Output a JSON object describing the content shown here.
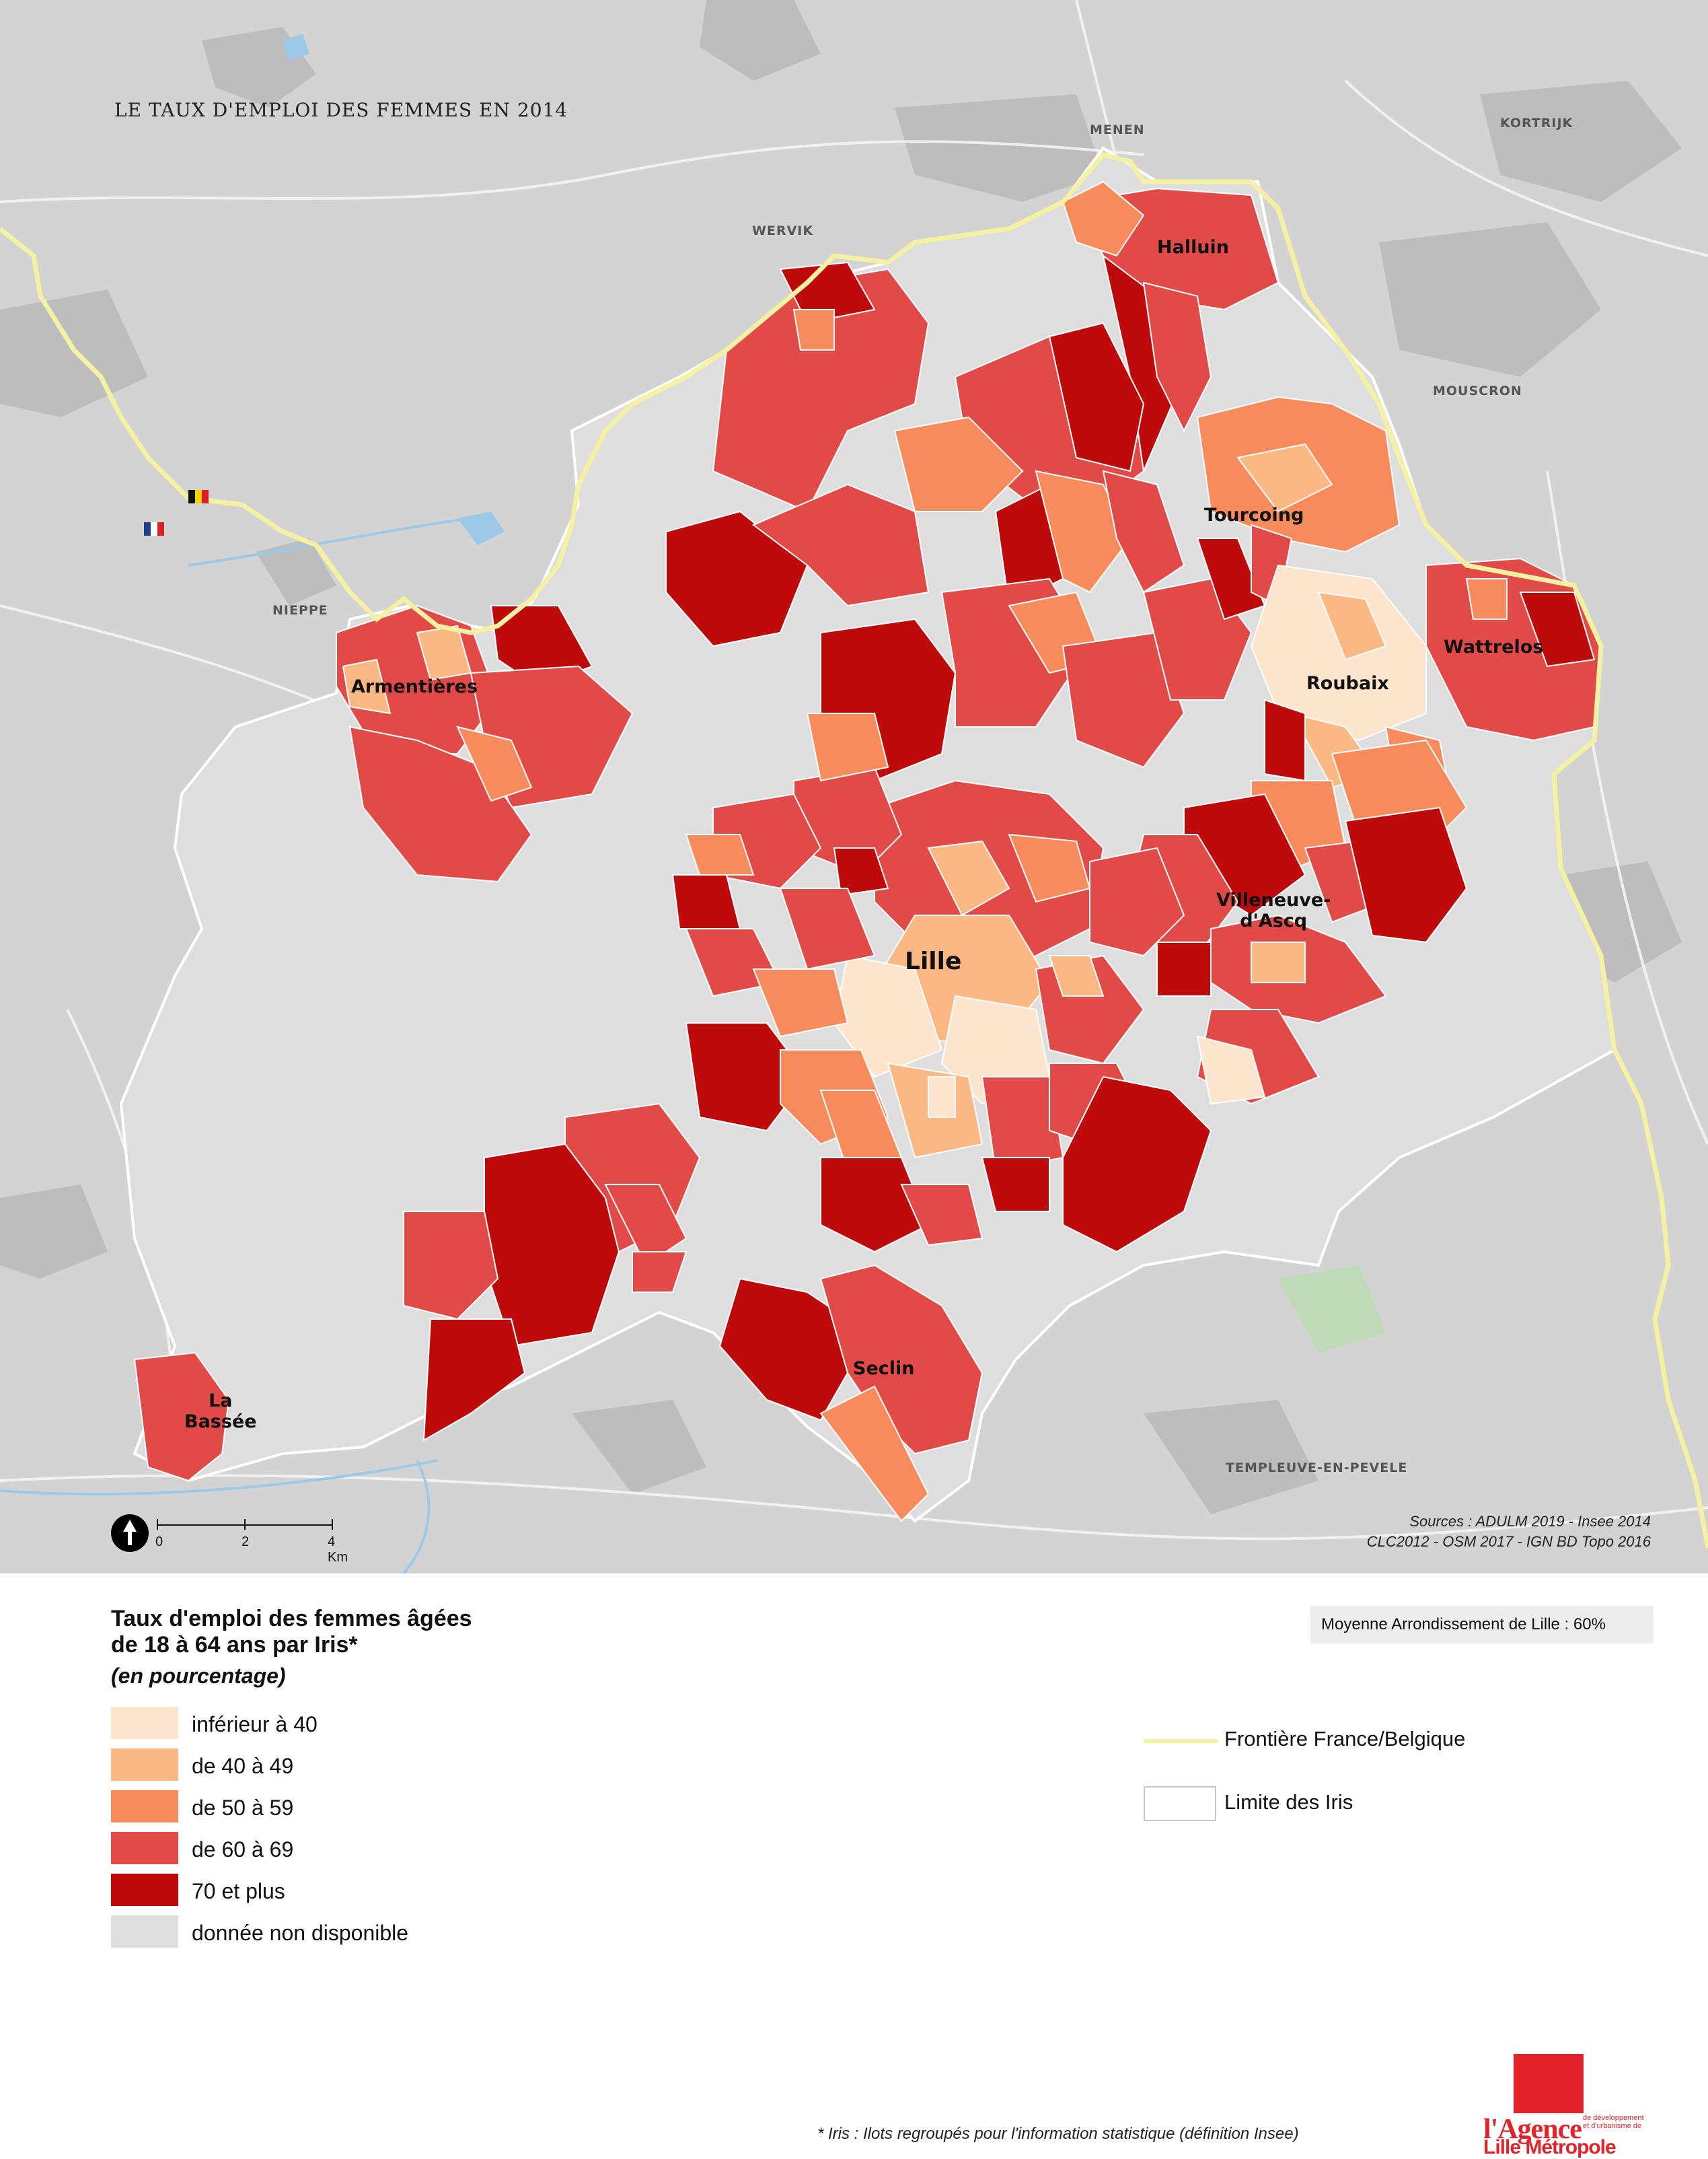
{
  "title": "LE TAUX D'EMPLOI DES FEMMES EN 2014",
  "places": {
    "menen": "MENEN",
    "kortrijk": "KORTRIJK",
    "wervik": "WERVIK",
    "mouscron": "MOUSCRON",
    "nieppe": "NIEPPE",
    "templeuve": "TEMPLEUVE-EN-PEVELE"
  },
  "cities": {
    "halluin": "Halluin",
    "tourcoing": "Tourcoing",
    "wattrelos": "Wattrelos",
    "roubaix": "Roubaix",
    "armentieres": "Armentières",
    "villeneuve_line1": "Villeneuve-",
    "villeneuve_line2": "d'Ascq",
    "lille": "Lille",
    "seclin": "Seclin",
    "la_bassee_line1": "La",
    "la_bassee_line2": "Bassée"
  },
  "sources": {
    "line1": "Sources : ADULM 2019 - Insee 2014",
    "line2": "CLC2012 -  OSM 2017 - IGN BD Topo 2016"
  },
  "scale": {
    "t0": "0",
    "t2": "2",
    "t4": "4 Km"
  },
  "legend": {
    "title_line1": "Taux d'emploi des femmes âgées",
    "title_line2": "de 18 à 64 ans par Iris*",
    "subtitle": "(en pourcentage)",
    "classes": [
      {
        "label": "inférieur à 40",
        "color": "#fde4cc"
      },
      {
        "label": "de 40 à 49",
        "color": "#fcb883"
      },
      {
        "label": "de 50 à 59",
        "color": "#f88b5c"
      },
      {
        "label": "de 60 à 69",
        "color": "#e24a48"
      },
      {
        "label": "70 et plus",
        "color": "#bf0a0c"
      },
      {
        "label": "donnée non disponible",
        "color": "#dedede"
      }
    ],
    "average": "Moyenne Arrondissement de Lille : 60%",
    "border_label": "Frontière France/Belgique",
    "iris_label": "Limite des Iris"
  },
  "flags": [
    "belgium-flag",
    "france-flag"
  ],
  "footnote": "* Iris : Ilots regroupés pour l'information statistique (définition Insee)",
  "logo": {
    "line1": "l'Agence",
    "line2": "Lille Métropole",
    "small1": "de développement",
    "small2": "et d'urbanisme de"
  }
}
